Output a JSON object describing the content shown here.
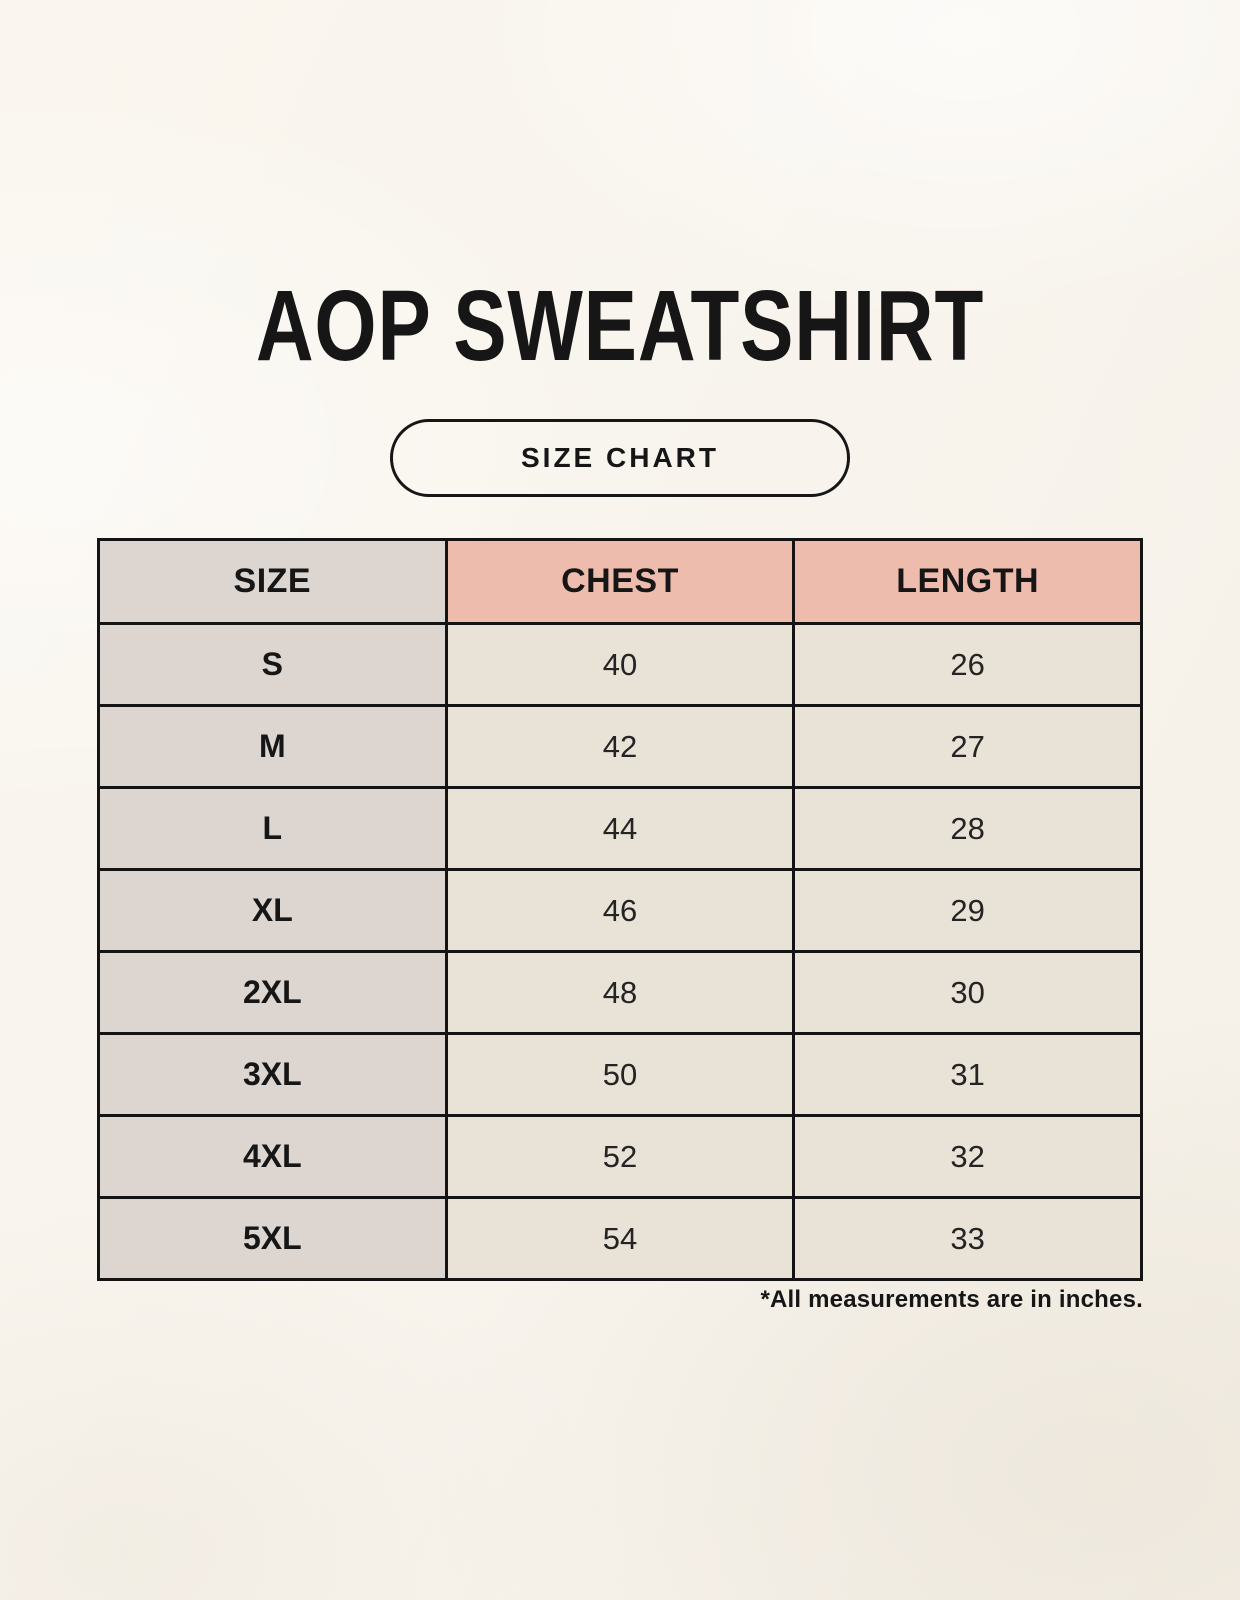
{
  "page": {
    "title": "AOP SWEATSHIRT",
    "badge": "SIZE CHART",
    "footnote": "*All measurements are in inches."
  },
  "table": {
    "headers": [
      "SIZE",
      "CHEST",
      "LENGTH"
    ],
    "rows": [
      {
        "size": "S",
        "chest": "40",
        "length": "26"
      },
      {
        "size": "M",
        "chest": "42",
        "length": "27"
      },
      {
        "size": "L",
        "chest": "44",
        "length": "28"
      },
      {
        "size": "XL",
        "chest": "46",
        "length": "29"
      },
      {
        "size": "2XL",
        "chest": "48",
        "length": "30"
      },
      {
        "size": "3XL",
        "chest": "50",
        "length": "31"
      },
      {
        "size": "4XL",
        "chest": "52",
        "length": "32"
      },
      {
        "size": "5XL",
        "chest": "54",
        "length": "33"
      }
    ]
  },
  "colors": {
    "background": "#f8f4ed",
    "accent_header": "#eebcad",
    "size_column": "#dcd5d0",
    "value_cell": "#e9e2d6",
    "border": "#141414",
    "text": "#161616"
  },
  "chart_data": {
    "type": "table",
    "title": "AOP SWEATSHIRT",
    "subtitle": "SIZE CHART",
    "columns": [
      "SIZE",
      "CHEST",
      "LENGTH"
    ],
    "rows": [
      [
        "S",
        40,
        26
      ],
      [
        "M",
        42,
        27
      ],
      [
        "L",
        44,
        28
      ],
      [
        "XL",
        46,
        29
      ],
      [
        "2XL",
        48,
        30
      ],
      [
        "3XL",
        50,
        31
      ],
      [
        "4XL",
        52,
        32
      ],
      [
        "5XL",
        54,
        33
      ]
    ],
    "units": "inches",
    "note": "*All measurements are in inches."
  }
}
